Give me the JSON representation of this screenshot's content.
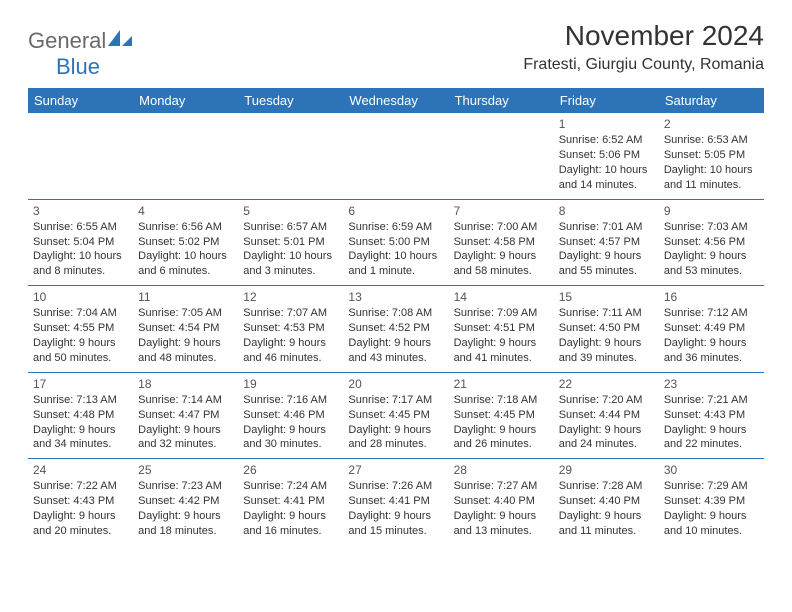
{
  "brand": {
    "name1": "General",
    "name2": "Blue"
  },
  "title": "November 2024",
  "location": "Fratesti, Giurgiu County, Romania",
  "colors": {
    "accent": "#2d73b8",
    "text": "#333333",
    "logo_gray": "#6a6a6a"
  },
  "weekdays": [
    "Sunday",
    "Monday",
    "Tuesday",
    "Wednesday",
    "Thursday",
    "Friday",
    "Saturday"
  ],
  "weeks": [
    [
      null,
      null,
      null,
      null,
      null,
      {
        "n": "1",
        "sr": "Sunrise: 6:52 AM",
        "ss": "Sunset: 5:06 PM",
        "d1": "Daylight: 10 hours",
        "d2": "and 14 minutes."
      },
      {
        "n": "2",
        "sr": "Sunrise: 6:53 AM",
        "ss": "Sunset: 5:05 PM",
        "d1": "Daylight: 10 hours",
        "d2": "and 11 minutes."
      }
    ],
    [
      {
        "n": "3",
        "sr": "Sunrise: 6:55 AM",
        "ss": "Sunset: 5:04 PM",
        "d1": "Daylight: 10 hours",
        "d2": "and 8 minutes."
      },
      {
        "n": "4",
        "sr": "Sunrise: 6:56 AM",
        "ss": "Sunset: 5:02 PM",
        "d1": "Daylight: 10 hours",
        "d2": "and 6 minutes."
      },
      {
        "n": "5",
        "sr": "Sunrise: 6:57 AM",
        "ss": "Sunset: 5:01 PM",
        "d1": "Daylight: 10 hours",
        "d2": "and 3 minutes."
      },
      {
        "n": "6",
        "sr": "Sunrise: 6:59 AM",
        "ss": "Sunset: 5:00 PM",
        "d1": "Daylight: 10 hours",
        "d2": "and 1 minute."
      },
      {
        "n": "7",
        "sr": "Sunrise: 7:00 AM",
        "ss": "Sunset: 4:58 PM",
        "d1": "Daylight: 9 hours",
        "d2": "and 58 minutes."
      },
      {
        "n": "8",
        "sr": "Sunrise: 7:01 AM",
        "ss": "Sunset: 4:57 PM",
        "d1": "Daylight: 9 hours",
        "d2": "and 55 minutes."
      },
      {
        "n": "9",
        "sr": "Sunrise: 7:03 AM",
        "ss": "Sunset: 4:56 PM",
        "d1": "Daylight: 9 hours",
        "d2": "and 53 minutes."
      }
    ],
    [
      {
        "n": "10",
        "sr": "Sunrise: 7:04 AM",
        "ss": "Sunset: 4:55 PM",
        "d1": "Daylight: 9 hours",
        "d2": "and 50 minutes."
      },
      {
        "n": "11",
        "sr": "Sunrise: 7:05 AM",
        "ss": "Sunset: 4:54 PM",
        "d1": "Daylight: 9 hours",
        "d2": "and 48 minutes."
      },
      {
        "n": "12",
        "sr": "Sunrise: 7:07 AM",
        "ss": "Sunset: 4:53 PM",
        "d1": "Daylight: 9 hours",
        "d2": "and 46 minutes."
      },
      {
        "n": "13",
        "sr": "Sunrise: 7:08 AM",
        "ss": "Sunset: 4:52 PM",
        "d1": "Daylight: 9 hours",
        "d2": "and 43 minutes."
      },
      {
        "n": "14",
        "sr": "Sunrise: 7:09 AM",
        "ss": "Sunset: 4:51 PM",
        "d1": "Daylight: 9 hours",
        "d2": "and 41 minutes."
      },
      {
        "n": "15",
        "sr": "Sunrise: 7:11 AM",
        "ss": "Sunset: 4:50 PM",
        "d1": "Daylight: 9 hours",
        "d2": "and 39 minutes."
      },
      {
        "n": "16",
        "sr": "Sunrise: 7:12 AM",
        "ss": "Sunset: 4:49 PM",
        "d1": "Daylight: 9 hours",
        "d2": "and 36 minutes."
      }
    ],
    [
      {
        "n": "17",
        "sr": "Sunrise: 7:13 AM",
        "ss": "Sunset: 4:48 PM",
        "d1": "Daylight: 9 hours",
        "d2": "and 34 minutes."
      },
      {
        "n": "18",
        "sr": "Sunrise: 7:14 AM",
        "ss": "Sunset: 4:47 PM",
        "d1": "Daylight: 9 hours",
        "d2": "and 32 minutes."
      },
      {
        "n": "19",
        "sr": "Sunrise: 7:16 AM",
        "ss": "Sunset: 4:46 PM",
        "d1": "Daylight: 9 hours",
        "d2": "and 30 minutes."
      },
      {
        "n": "20",
        "sr": "Sunrise: 7:17 AM",
        "ss": "Sunset: 4:45 PM",
        "d1": "Daylight: 9 hours",
        "d2": "and 28 minutes."
      },
      {
        "n": "21",
        "sr": "Sunrise: 7:18 AM",
        "ss": "Sunset: 4:45 PM",
        "d1": "Daylight: 9 hours",
        "d2": "and 26 minutes."
      },
      {
        "n": "22",
        "sr": "Sunrise: 7:20 AM",
        "ss": "Sunset: 4:44 PM",
        "d1": "Daylight: 9 hours",
        "d2": "and 24 minutes."
      },
      {
        "n": "23",
        "sr": "Sunrise: 7:21 AM",
        "ss": "Sunset: 4:43 PM",
        "d1": "Daylight: 9 hours",
        "d2": "and 22 minutes."
      }
    ],
    [
      {
        "n": "24",
        "sr": "Sunrise: 7:22 AM",
        "ss": "Sunset: 4:43 PM",
        "d1": "Daylight: 9 hours",
        "d2": "and 20 minutes."
      },
      {
        "n": "25",
        "sr": "Sunrise: 7:23 AM",
        "ss": "Sunset: 4:42 PM",
        "d1": "Daylight: 9 hours",
        "d2": "and 18 minutes."
      },
      {
        "n": "26",
        "sr": "Sunrise: 7:24 AM",
        "ss": "Sunset: 4:41 PM",
        "d1": "Daylight: 9 hours",
        "d2": "and 16 minutes."
      },
      {
        "n": "27",
        "sr": "Sunrise: 7:26 AM",
        "ss": "Sunset: 4:41 PM",
        "d1": "Daylight: 9 hours",
        "d2": "and 15 minutes."
      },
      {
        "n": "28",
        "sr": "Sunrise: 7:27 AM",
        "ss": "Sunset: 4:40 PM",
        "d1": "Daylight: 9 hours",
        "d2": "and 13 minutes."
      },
      {
        "n": "29",
        "sr": "Sunrise: 7:28 AM",
        "ss": "Sunset: 4:40 PM",
        "d1": "Daylight: 9 hours",
        "d2": "and 11 minutes."
      },
      {
        "n": "30",
        "sr": "Sunrise: 7:29 AM",
        "ss": "Sunset: 4:39 PM",
        "d1": "Daylight: 9 hours",
        "d2": "and 10 minutes."
      }
    ]
  ]
}
